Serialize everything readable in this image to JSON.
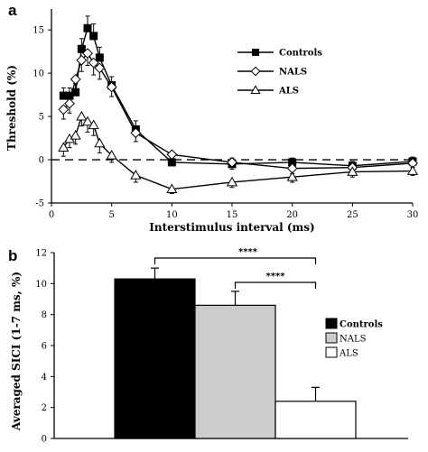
{
  "panel_a": {
    "label": "a"
  },
  "panel_b": {
    "label": "b"
  },
  "chart_data": [
    {
      "type": "line",
      "ylabel": "Threshold (%)",
      "xlabel": "Interstimulus interval (ms)",
      "xlim": [
        0,
        30
      ],
      "ylim": [
        -5,
        17
      ],
      "xticks": [
        0,
        5,
        10,
        15,
        20,
        25,
        30
      ],
      "yticks": [
        -5,
        0,
        5,
        10,
        15
      ],
      "reference_line": {
        "y": 0,
        "style": "dashed"
      },
      "legend_position": "right",
      "series": [
        {
          "name": "Controls",
          "marker": "filled-square",
          "x": [
            1,
            1.5,
            2,
            2.5,
            3,
            3.5,
            4,
            5,
            7,
            10,
            15,
            20,
            25,
            30
          ],
          "y": [
            7.4,
            7.4,
            7.8,
            12.8,
            15.2,
            14.3,
            11.8,
            8.6,
            3.5,
            -0.3,
            -0.5,
            -0.3,
            -0.7,
            -0.2
          ],
          "err": [
            0.9,
            0.9,
            1.0,
            1.2,
            1.4,
            1.4,
            1.2,
            1.0,
            1.0,
            0.7,
            0.7,
            0.5,
            0.5,
            0.5
          ]
        },
        {
          "name": "NALS",
          "marker": "open-diamond",
          "x": [
            1,
            1.5,
            2,
            2.5,
            3,
            3.5,
            4,
            5,
            7,
            10,
            15,
            20,
            25,
            30
          ],
          "y": [
            5.8,
            6.5,
            9.3,
            11.5,
            12.3,
            11.2,
            10.6,
            8.4,
            3.1,
            0.6,
            -0.3,
            -1.0,
            -0.9,
            -0.4
          ],
          "err": [
            1.1,
            1.1,
            1.2,
            1.3,
            1.4,
            1.4,
            1.3,
            1.1,
            1.0,
            0.8,
            0.8,
            0.6,
            0.6,
            0.5
          ]
        },
        {
          "name": "ALS",
          "marker": "open-triangle",
          "x": [
            1,
            1.5,
            2,
            2.5,
            3,
            3.5,
            4,
            5,
            7,
            10,
            15,
            20,
            25,
            30
          ],
          "y": [
            1.4,
            2.4,
            2.8,
            5.0,
            4.4,
            4.0,
            1.9,
            0.5,
            -1.8,
            -3.4,
            -2.6,
            -2.0,
            -1.4,
            -1.3
          ],
          "err": [
            1.0,
            1.0,
            1.0,
            1.1,
            1.2,
            1.2,
            1.1,
            0.8,
            0.8,
            0.5,
            0.6,
            0.6,
            0.6,
            0.5
          ]
        }
      ]
    },
    {
      "type": "bar",
      "ylabel": "Averaged SICI (1-7 ms, %)",
      "ylim": [
        0,
        12
      ],
      "yticks": [
        0,
        2,
        4,
        6,
        8,
        10,
        12
      ],
      "legend_position": "right",
      "categories": [
        "Controls",
        "NALS",
        "ALS"
      ],
      "values": [
        10.3,
        8.6,
        2.4
      ],
      "errors": [
        0.7,
        0.9,
        0.9
      ],
      "colors": [
        "#000000",
        "#cccccc",
        "#ffffff"
      ],
      "annotations": [
        {
          "from": "Controls",
          "to": "ALS",
          "text": "****"
        },
        {
          "from": "NALS",
          "to": "ALS",
          "text": "****"
        }
      ]
    }
  ]
}
